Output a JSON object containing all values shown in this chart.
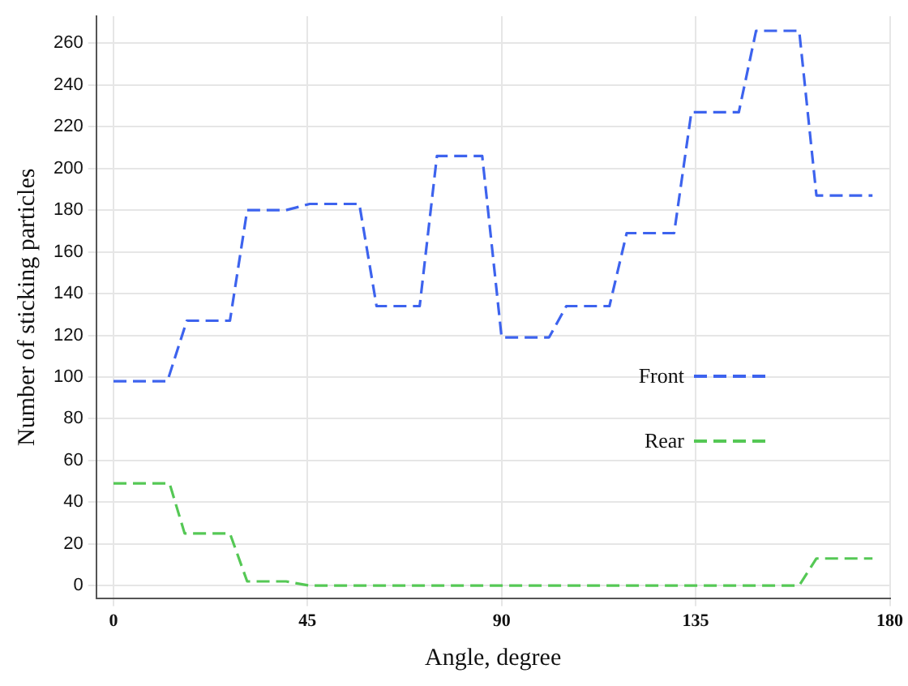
{
  "chart_data": {
    "type": "line",
    "xlabel": "Angle, degree",
    "ylabel": "Number of sticking particles",
    "xlim": [
      -4,
      180
    ],
    "xticks": [
      0,
      45,
      90,
      135,
      180
    ],
    "ylim": [
      -6,
      273
    ],
    "yticks": [
      0,
      20,
      40,
      60,
      80,
      100,
      120,
      140,
      160,
      180,
      200,
      220,
      240,
      260
    ],
    "grid": true,
    "legend": "right",
    "line_style": "dashed",
    "marker": "none",
    "series": [
      {
        "name": "Front",
        "color": "#3d63ee",
        "x": [
          0,
          12.5,
          17,
          27,
          31,
          40,
          45.5,
          57,
          61,
          71,
          75,
          85.5,
          90,
          101,
          105,
          115,
          119,
          130,
          134,
          145,
          149,
          159,
          163,
          176
        ],
        "values": [
          98,
          98,
          127,
          127,
          180,
          180,
          183,
          183,
          134,
          134,
          206,
          206,
          119,
          119,
          134,
          134,
          169,
          169,
          227,
          227,
          266,
          266,
          187,
          187
        ]
      },
      {
        "name": "Rear",
        "color": "#55c855",
        "x": [
          0,
          13,
          16.5,
          27,
          31,
          40,
          45.5,
          159,
          163,
          176
        ],
        "values": [
          49,
          49,
          25,
          25,
          2,
          2,
          0,
          0,
          13,
          13
        ]
      }
    ]
  }
}
